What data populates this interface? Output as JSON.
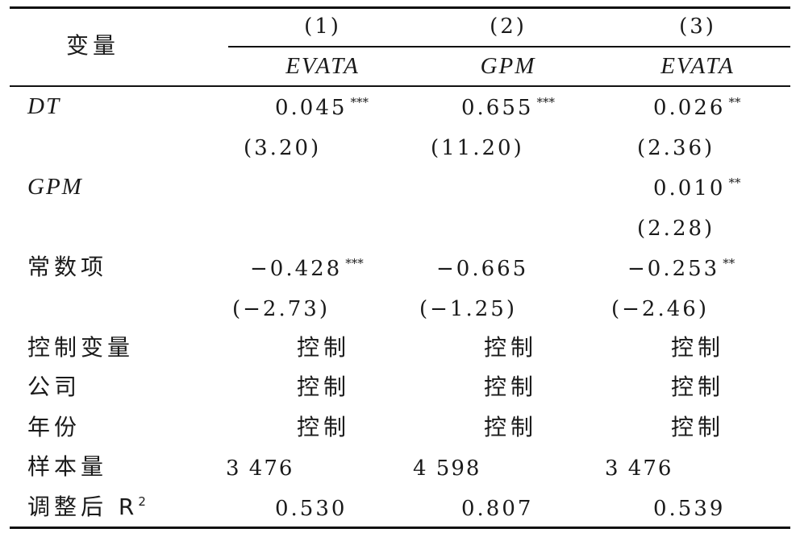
{
  "table": {
    "header": {
      "var_label": "变量",
      "col_numbers": [
        "(1)",
        "(2)",
        "(3)"
      ],
      "col_vars": [
        "EVATA",
        "GPM",
        "EVATA"
      ]
    },
    "rows": {
      "dt_label": "DT",
      "dt_coef": [
        "0.045",
        "0.655",
        "0.026"
      ],
      "dt_stars": [
        "***",
        "***",
        "**"
      ],
      "dt_t": [
        "(3.20)",
        "(11.20)",
        "(2.36)"
      ],
      "gpm_label": "GPM",
      "gpm_coef": "0.010",
      "gpm_star": "**",
      "gpm_t": "(2.28)",
      "const_label": "常数项",
      "const_coef": [
        "−0.428",
        "−0.665",
        "−0.253"
      ],
      "const_stars": [
        "***",
        "",
        "**"
      ],
      "const_t": [
        "(−2.73)",
        "(−1.25)",
        "(−2.46)"
      ],
      "control_label": "控制变量",
      "company_label": "公司",
      "year_label": "年份",
      "controlled": "控制",
      "n_label": "样本量",
      "n_values": [
        "3 476",
        "4 598",
        "3 476"
      ],
      "r2_label": "调整后 R",
      "r2_sup": "2",
      "r2_values": [
        "0.530",
        "0.807",
        "0.539"
      ]
    }
  }
}
